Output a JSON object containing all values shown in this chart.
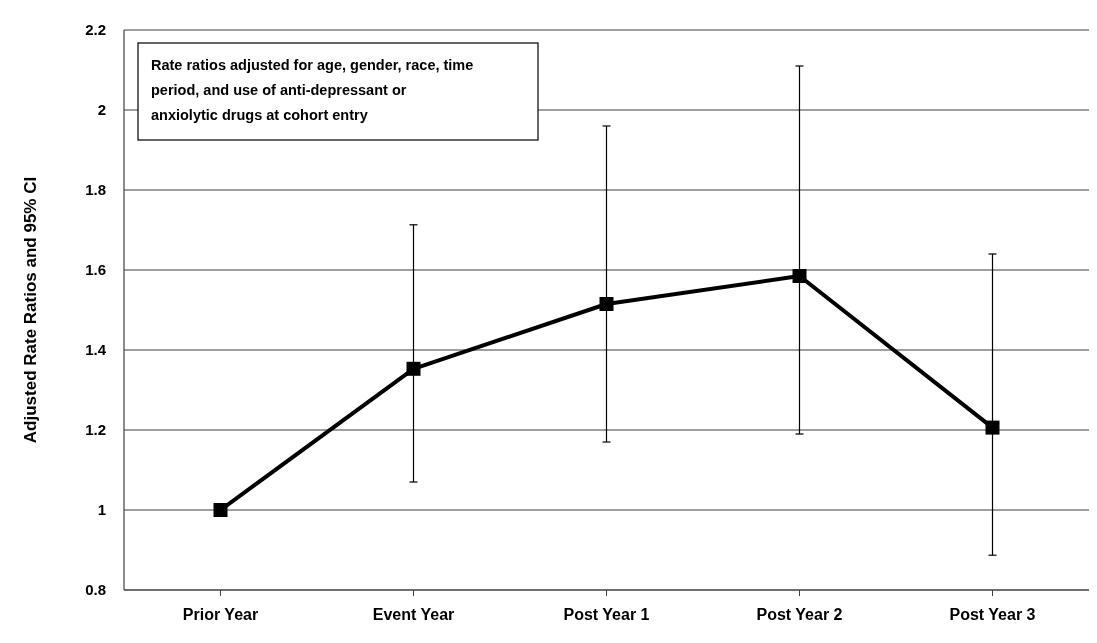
{
  "chart_data": {
    "type": "line",
    "ylabel": "Adjusted Rate Ratios  and 95% CI",
    "annotations": [
      "Rate ratios adjusted for age, gender, race, time period,  and use of anti-depressant or anxiolytic drugs at cohort entry"
    ],
    "categories": [
      "Prior Year",
      "Event Year",
      "Post Year 1",
      "Post Year 2",
      "Post Year 3"
    ],
    "series": [
      {
        "color": "#000000",
        "values": [
          1.0,
          1.353,
          1.515,
          1.585,
          1.206
        ],
        "errors": [
          null,
          [
            1.07,
            1.713
          ],
          [
            1.17,
            1.96
          ],
          [
            1.19,
            2.11
          ],
          [
            0.887,
            1.64
          ]
        ]
      }
    ],
    "ylim": [
      0.8,
      2.2
    ],
    "yticks": [
      0.8,
      1,
      1.2,
      1.4,
      1.6,
      1.8,
      2,
      2.2
    ],
    "grid": "y",
    "marker": "square",
    "line_style": "solid"
  }
}
